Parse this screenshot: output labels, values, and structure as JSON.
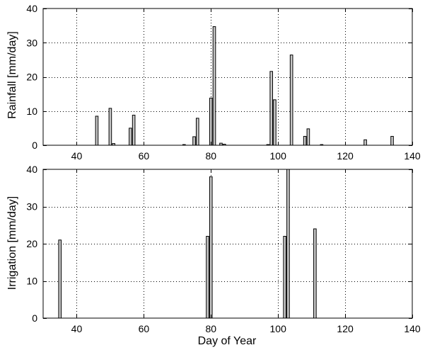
{
  "chart_data": [
    {
      "type": "bar",
      "ylabel": "Rainfall [mm/day]",
      "xlabel": "",
      "xlim": [
        30,
        140
      ],
      "ylim": [
        0,
        40
      ],
      "xticks": [
        40,
        60,
        80,
        100,
        120,
        140
      ],
      "yticks": [
        0,
        10,
        20,
        30,
        40
      ],
      "grid": true,
      "x": [
        46,
        50,
        51,
        56,
        57,
        72,
        75,
        76,
        80,
        81,
        83,
        84,
        97,
        98,
        99,
        104,
        108,
        109,
        113,
        126,
        134
      ],
      "values": [
        8.5,
        10.8,
        0.5,
        5.0,
        8.8,
        0.2,
        2.5,
        7.9,
        13.8,
        34.7,
        0.6,
        0.3,
        0.2,
        21.6,
        13.3,
        26.4,
        2.6,
        4.8,
        0.2,
        1.6,
        2.6
      ]
    },
    {
      "type": "bar",
      "ylabel": "Irrigation [mm/day]",
      "xlabel": "Day of Year",
      "xlim": [
        30,
        140
      ],
      "ylim": [
        0,
        40
      ],
      "xticks": [
        40,
        60,
        80,
        100,
        120,
        140
      ],
      "yticks": [
        0,
        10,
        20,
        30,
        40
      ],
      "grid": true,
      "x": [
        35,
        79,
        80,
        102,
        103,
        111
      ],
      "values": [
        21.0,
        22.0,
        38.0,
        22.0,
        40.0,
        24.0
      ]
    }
  ]
}
